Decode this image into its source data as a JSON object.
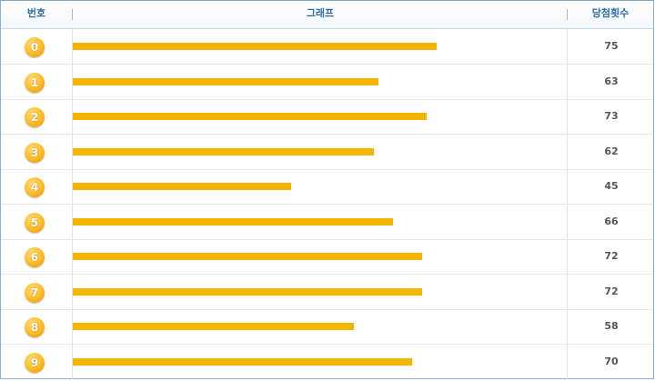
{
  "header": {
    "number": "번호",
    "graph": "그래프",
    "count": "당첨횟수"
  },
  "colors": {
    "bar": "#f5b400",
    "header_text": "#2f6fa6",
    "ball": "#ffb21a"
  },
  "chart_data": {
    "type": "bar",
    "orientation": "horizontal",
    "categories": [
      "0",
      "1",
      "2",
      "3",
      "4",
      "5",
      "6",
      "7",
      "8",
      "9"
    ],
    "values": [
      75,
      63,
      73,
      62,
      45,
      66,
      72,
      72,
      58,
      70
    ],
    "xlim": [
      0,
      100
    ],
    "xlabel": "",
    "ylabel": "",
    "grid": false
  }
}
